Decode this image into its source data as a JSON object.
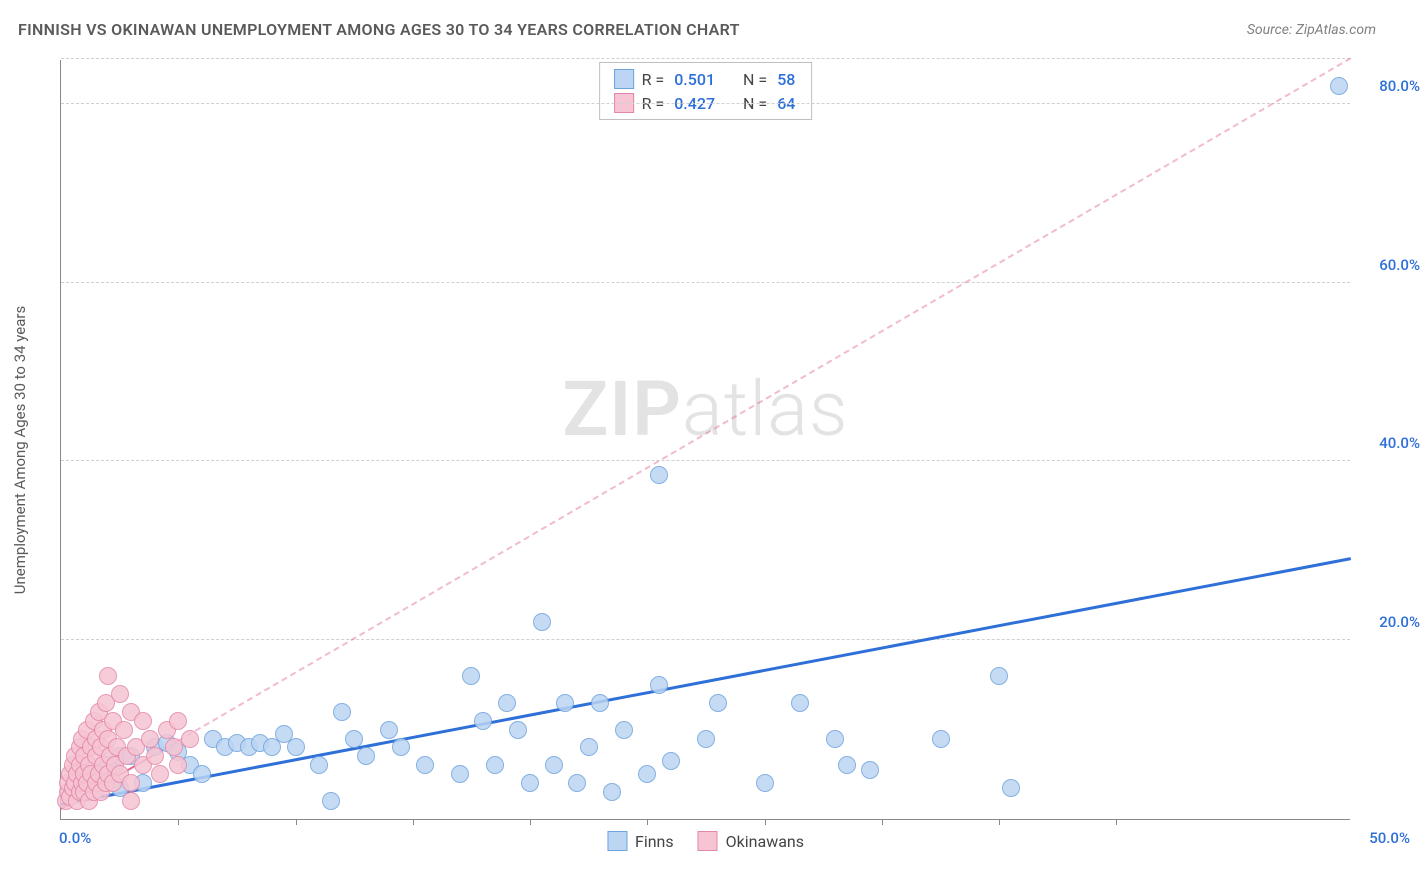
{
  "title": "FINNISH VS OKINAWAN UNEMPLOYMENT AMONG AGES 30 TO 34 YEARS CORRELATION CHART",
  "source": "Source: ZipAtlas.com",
  "y_axis_label": "Unemployment Among Ages 30 to 34 years",
  "watermark": {
    "bold": "ZIP",
    "light": "atlas"
  },
  "chart": {
    "type": "scatter",
    "xlim": [
      0,
      55
    ],
    "ylim": [
      0,
      85
    ],
    "x_ticks": [
      0,
      50
    ],
    "x_tick_labels": [
      "0.0%",
      "50.0%"
    ],
    "x_minor_ticks": [
      5,
      10,
      15,
      20,
      25,
      30,
      35,
      40,
      45
    ],
    "y_grid": [
      20,
      40,
      60,
      80,
      85
    ],
    "y_tick_labels": [
      "20.0%",
      "40.0%",
      "60.0%",
      "80.0%",
      ""
    ],
    "x_tick_color": "#2e6fd8",
    "y_tick_color": "#2e6fd8",
    "grid_color": "#d0d0d0",
    "background_color": "#ffffff",
    "point_radius": 9,
    "series": [
      {
        "name": "Finns",
        "color_fill": "#bcd5f3",
        "color_stroke": "#6fa3de",
        "trend": {
          "x1": 0,
          "y1": 1.5,
          "x2": 55,
          "y2": 29,
          "color": "#2e6fd8",
          "width": 3,
          "dash": false
        },
        "points": [
          [
            1,
            4
          ],
          [
            1.5,
            5
          ],
          [
            2,
            6
          ],
          [
            2.5,
            7
          ],
          [
            2.5,
            3.5
          ],
          [
            3,
            7
          ],
          [
            3.5,
            4
          ],
          [
            4,
            8
          ],
          [
            4.5,
            8.5
          ],
          [
            5,
            7.5
          ],
          [
            5.5,
            6
          ],
          [
            6,
            5
          ],
          [
            6.5,
            9
          ],
          [
            7,
            8
          ],
          [
            7.5,
            8.5
          ],
          [
            8,
            8
          ],
          [
            8.5,
            8.5
          ],
          [
            9,
            8
          ],
          [
            9.5,
            9.5
          ],
          [
            10,
            8
          ],
          [
            11,
            6
          ],
          [
            11.5,
            2
          ],
          [
            12,
            12
          ],
          [
            12.5,
            9
          ],
          [
            13,
            7
          ],
          [
            14,
            10
          ],
          [
            14.5,
            8
          ],
          [
            15.5,
            6
          ],
          [
            17,
            5
          ],
          [
            17.5,
            16
          ],
          [
            18,
            11
          ],
          [
            18.5,
            6
          ],
          [
            19,
            13
          ],
          [
            19.5,
            10
          ],
          [
            20,
            4
          ],
          [
            20.5,
            22
          ],
          [
            21,
            6
          ],
          [
            21.5,
            13
          ],
          [
            22,
            4
          ],
          [
            22.5,
            8
          ],
          [
            23,
            13
          ],
          [
            23.5,
            3
          ],
          [
            24,
            10
          ],
          [
            25,
            5
          ],
          [
            25.5,
            15
          ],
          [
            25.5,
            38.5
          ],
          [
            26,
            6.5
          ],
          [
            27.5,
            9
          ],
          [
            28,
            13
          ],
          [
            30,
            4
          ],
          [
            31.5,
            13
          ],
          [
            33,
            9
          ],
          [
            33.5,
            6
          ],
          [
            34.5,
            5.5
          ],
          [
            37.5,
            9
          ],
          [
            40,
            16
          ],
          [
            40.5,
            3.5
          ],
          [
            54.5,
            82
          ]
        ]
      },
      {
        "name": "Okinawans",
        "color_fill": "#f6c4d3",
        "color_stroke": "#e388a8",
        "trend": {
          "x1": 0,
          "y1": 1,
          "x2": 55,
          "y2": 85,
          "color": "#e06a93",
          "width": 2.5,
          "dash": true,
          "solid_until": 5
        },
        "points": [
          [
            0.2,
            2
          ],
          [
            0.3,
            3
          ],
          [
            0.3,
            4
          ],
          [
            0.4,
            2.5
          ],
          [
            0.4,
            5
          ],
          [
            0.5,
            3.5
          ],
          [
            0.5,
            6
          ],
          [
            0.6,
            4
          ],
          [
            0.6,
            7
          ],
          [
            0.7,
            2
          ],
          [
            0.7,
            5
          ],
          [
            0.8,
            3
          ],
          [
            0.8,
            6
          ],
          [
            0.8,
            8
          ],
          [
            0.9,
            4
          ],
          [
            0.9,
            9
          ],
          [
            1,
            3
          ],
          [
            1,
            5
          ],
          [
            1,
            7
          ],
          [
            1.1,
            4
          ],
          [
            1.1,
            10
          ],
          [
            1.2,
            2
          ],
          [
            1.2,
            6
          ],
          [
            1.3,
            5
          ],
          [
            1.3,
            8
          ],
          [
            1.4,
            3
          ],
          [
            1.4,
            11
          ],
          [
            1.5,
            4
          ],
          [
            1.5,
            7
          ],
          [
            1.5,
            9
          ],
          [
            1.6,
            5
          ],
          [
            1.6,
            12
          ],
          [
            1.7,
            3
          ],
          [
            1.7,
            8
          ],
          [
            1.8,
            6
          ],
          [
            1.8,
            10
          ],
          [
            1.9,
            4
          ],
          [
            1.9,
            13
          ],
          [
            2,
            5
          ],
          [
            2,
            9
          ],
          [
            2,
            16
          ],
          [
            2.1,
            7
          ],
          [
            2.2,
            4
          ],
          [
            2.2,
            11
          ],
          [
            2.3,
            6
          ],
          [
            2.4,
            8
          ],
          [
            2.5,
            14
          ],
          [
            2.5,
            5
          ],
          [
            2.7,
            10
          ],
          [
            2.8,
            7
          ],
          [
            3,
            4
          ],
          [
            3,
            12
          ],
          [
            3.2,
            8
          ],
          [
            3.5,
            6
          ],
          [
            3.5,
            11
          ],
          [
            3.8,
            9
          ],
          [
            4,
            7
          ],
          [
            4.2,
            5
          ],
          [
            4.5,
            10
          ],
          [
            4.8,
            8
          ],
          [
            5,
            6
          ],
          [
            5,
            11
          ],
          [
            5.5,
            9
          ],
          [
            3,
            2
          ]
        ]
      }
    ]
  },
  "legend_top": [
    {
      "swatch_fill": "#bcd5f3",
      "swatch_stroke": "#6fa3de",
      "r_label": "R =",
      "r_value": "0.501",
      "n_label": "N =",
      "n_value": "58"
    },
    {
      "swatch_fill": "#f6c4d3",
      "swatch_stroke": "#e388a8",
      "r_label": "R =",
      "r_value": "0.427",
      "n_label": "N =",
      "n_value": "64"
    }
  ],
  "legend_bottom": [
    {
      "swatch_fill": "#bcd5f3",
      "swatch_stroke": "#6fa3de",
      "label": "Finns"
    },
    {
      "swatch_fill": "#f6c4d3",
      "swatch_stroke": "#e388a8",
      "label": "Okinawans"
    }
  ]
}
